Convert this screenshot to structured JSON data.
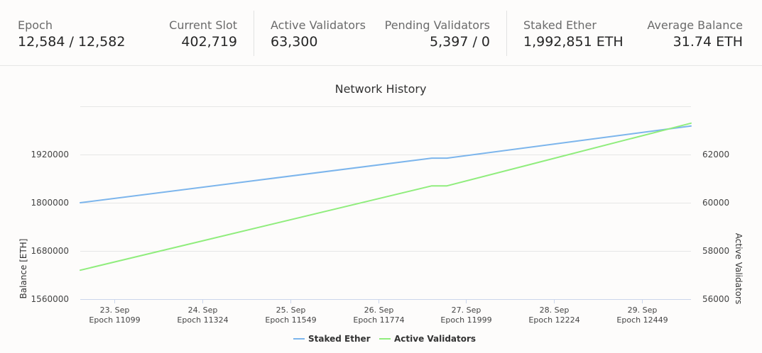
{
  "stats": {
    "epoch": {
      "label": "Epoch",
      "value": "12,584 / 12,582"
    },
    "current_slot": {
      "label": "Current Slot",
      "value": "402,719"
    },
    "active_validators": {
      "label": "Active Validators",
      "value": "63,300"
    },
    "pending_validators": {
      "label": "Pending Validators",
      "value": "5,397 / 0"
    },
    "staked_ether": {
      "label": "Staked Ether",
      "value": "1,992,851 ETH"
    },
    "average_balance": {
      "label": "Average Balance",
      "value": "31.74 ETH"
    }
  },
  "chart_data": {
    "type": "line",
    "title": "Network History",
    "ylabel": "Balance [ETH]",
    "y2label": "Active Validators",
    "x_ticks": [
      {
        "x": 11099,
        "date": "23. Sep",
        "epoch": "Epoch 11099"
      },
      {
        "x": 11324,
        "date": "24. Sep",
        "epoch": "Epoch 11324"
      },
      {
        "x": 11549,
        "date": "25. Sep",
        "epoch": "Epoch 11549"
      },
      {
        "x": 11774,
        "date": "26. Sep",
        "epoch": "Epoch 11774"
      },
      {
        "x": 11999,
        "date": "27. Sep",
        "epoch": "Epoch 11999"
      },
      {
        "x": 12224,
        "date": "28. Sep",
        "epoch": "Epoch 12224"
      },
      {
        "x": 12449,
        "date": "29. Sep",
        "epoch": "Epoch 12449"
      }
    ],
    "xlim": [
      11012,
      12574
    ],
    "ylim_left": [
      1560000,
      2040000
    ],
    "yticks_left": [
      1560000,
      1680000,
      1800000,
      1920000
    ],
    "ylim_right": [
      56000,
      64000
    ],
    "yticks_right": [
      56000,
      58000,
      60000,
      62000
    ],
    "series": [
      {
        "name": "Staked Ether",
        "axis": "left",
        "color": "#7cb5ec",
        "points": [
          [
            11012,
            1800000
          ],
          [
            11911,
            1911000
          ],
          [
            11950,
            1911000
          ],
          [
            12574,
            1991000
          ]
        ]
      },
      {
        "name": "Active Validators",
        "axis": "right",
        "color": "#90ed7d",
        "points": [
          [
            11012,
            57200
          ],
          [
            11911,
            60700
          ],
          [
            11950,
            60700
          ],
          [
            12574,
            63300
          ]
        ]
      }
    ],
    "legend": "bottom-center",
    "grid": true
  }
}
